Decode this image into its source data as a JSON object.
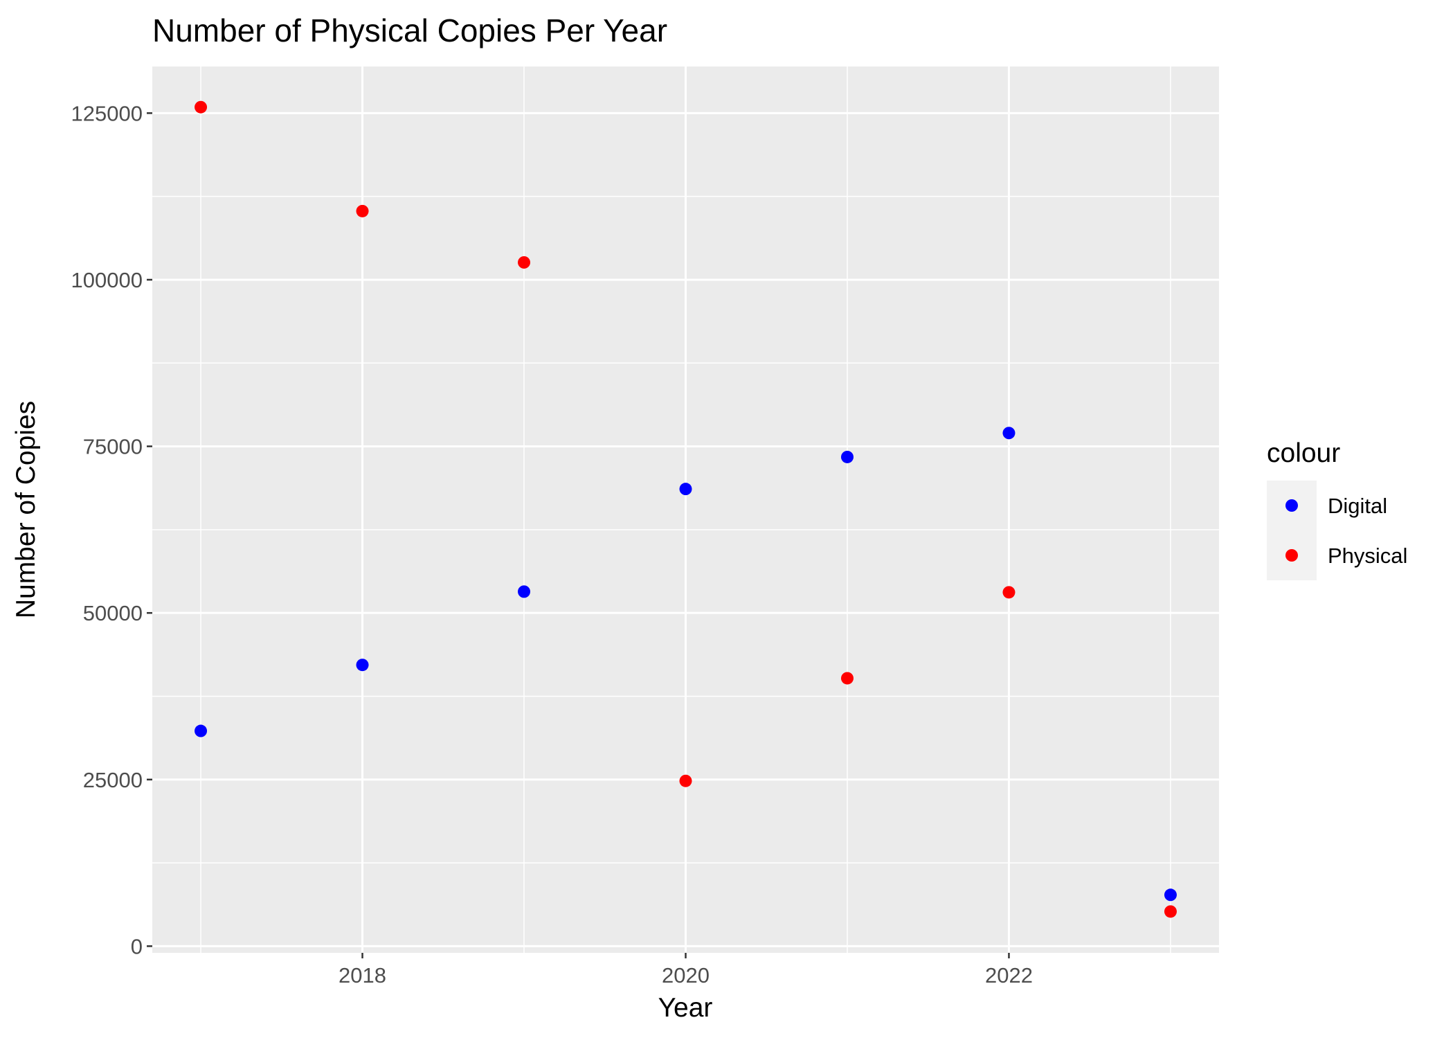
{
  "chart_data": {
    "type": "scatter",
    "title": "Number of Physical Copies Per Year",
    "xlabel": "Year",
    "ylabel": "Number of Copies",
    "xlim": [
      2016.7,
      2023.3
    ],
    "ylim": [
      -1000,
      132000
    ],
    "x_ticks": [
      2018,
      2020,
      2022
    ],
    "x_tick_labels": [
      "2018",
      "2020",
      "2022"
    ],
    "y_ticks": [
      0,
      25000,
      50000,
      75000,
      100000,
      125000
    ],
    "y_tick_labels": [
      "0",
      "25000",
      "50000",
      "75000",
      "100000",
      "125000"
    ],
    "grid": true,
    "legend": {
      "title": "colour",
      "position": "right",
      "entries": [
        "Digital",
        "Physical"
      ]
    },
    "series": [
      {
        "name": "Digital",
        "color": "#0000FF",
        "x": [
          2017,
          2018,
          2019,
          2020,
          2021,
          2022,
          2023
        ],
        "values": [
          32300,
          42200,
          53200,
          68600,
          73400,
          77000,
          7700
        ]
      },
      {
        "name": "Physical",
        "color": "#FF0000",
        "x": [
          2017,
          2018,
          2019,
          2020,
          2021,
          2022,
          2023
        ],
        "values": [
          125900,
          110300,
          102600,
          24800,
          40200,
          53100,
          5200
        ]
      }
    ]
  }
}
